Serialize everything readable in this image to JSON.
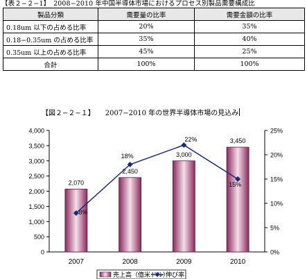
{
  "table": {
    "caption": "【表２−２−1】　2008−2010 年中国半導体市場におけるプロセス別製品需要構成比",
    "headers": [
      "製品分類",
      "需要量の比率",
      "需要金額の比率"
    ],
    "rows": [
      [
        "0.18um 以下の占める比率",
        "20%",
        "35%"
      ],
      [
        "0.18−0.35um の占める比率",
        "35%",
        "40%"
      ],
      [
        "0.35um 以上の占める比率",
        "45%",
        "25%"
      ],
      [
        "合計",
        "100%",
        "100%"
      ]
    ]
  },
  "figure": {
    "caption": "【図２−２−１】　　2007−2010 年の世界半導体市場の見込み"
  },
  "chart_data": {
    "type": "bar",
    "categories": [
      "2007",
      "2008",
      "2009",
      "2010"
    ],
    "series": [
      {
        "name": "売上高（億米ドル）",
        "type": "bar",
        "axis": "left",
        "values": [
          2070,
          2450,
          3000,
          3450
        ],
        "labels": [
          "2,070",
          "2,450",
          "3,000",
          "3,450"
        ]
      },
      {
        "name": "伸び率",
        "type": "line",
        "axis": "right",
        "values": [
          8,
          18,
          22,
          15
        ],
        "labels": [
          "8%",
          "18%",
          "22%",
          "15%"
        ]
      }
    ],
    "y_left": {
      "ylim": [
        0,
        4000
      ],
      "ticks": [
        "0",
        "500",
        "1,000",
        "1,500",
        "2,000",
        "2,500",
        "3,000",
        "3,500",
        "4,000"
      ]
    },
    "y_right": {
      "ylim": [
        0,
        25
      ],
      "ticks": [
        "0%",
        "5%",
        "10%",
        "15%",
        "20%",
        "25%"
      ]
    },
    "legend": {
      "position": "bottom",
      "bar_label": "売上高（億米ドル）",
      "line_label": "伸び率"
    },
    "grid": false,
    "colors": {
      "bar": "#8b2a5e",
      "bar_light": "#f4dfe9",
      "line": "#1a2a7a"
    }
  }
}
